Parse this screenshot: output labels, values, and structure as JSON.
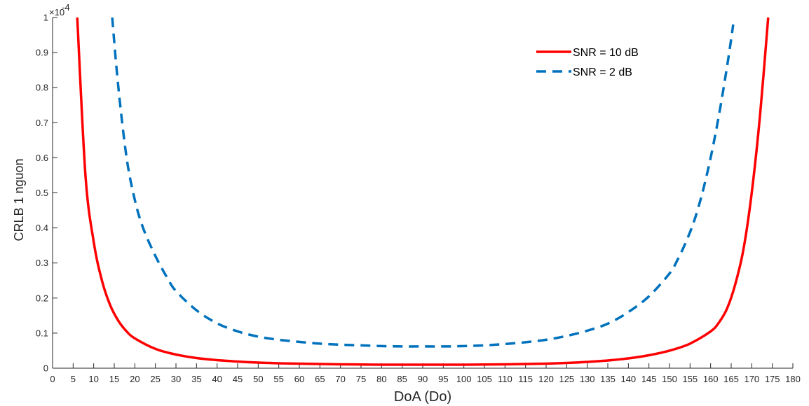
{
  "chart_data": {
    "type": "line",
    "xlabel": "DoA (Do)",
    "ylabel": "CRLB 1 nguon",
    "y_exponent_label": "×10",
    "y_exponent_power": "-4",
    "xlim": [
      0,
      180
    ],
    "ylim": [
      0,
      1
    ],
    "x_ticks": [
      0,
      5,
      10,
      15,
      20,
      25,
      30,
      35,
      40,
      45,
      50,
      55,
      60,
      65,
      70,
      75,
      80,
      85,
      90,
      95,
      100,
      105,
      110,
      115,
      120,
      125,
      130,
      135,
      140,
      145,
      150,
      155,
      160,
      165,
      170,
      175,
      180
    ],
    "y_ticks": [
      0,
      0.1,
      0.2,
      0.3,
      0.4,
      0.5,
      0.6,
      0.7,
      0.8,
      0.9,
      1
    ],
    "legend_position": "top-right",
    "grid": false,
    "series": [
      {
        "name": "SNR = 10 dB",
        "color": "#ff0000",
        "style": "solid",
        "x": [
          6,
          8,
          10,
          12,
          14,
          16,
          18,
          20,
          25,
          30,
          35,
          40,
          45,
          50,
          55,
          60,
          65,
          70,
          75,
          80,
          85,
          90,
          95,
          100,
          105,
          110,
          115,
          120,
          125,
          130,
          135,
          140,
          145,
          150,
          155,
          160,
          162,
          164,
          166,
          168,
          170,
          172,
          174
        ],
        "y": [
          1.0,
          0.55,
          0.36,
          0.25,
          0.18,
          0.135,
          0.105,
          0.085,
          0.055,
          0.039,
          0.029,
          0.023,
          0.019,
          0.016,
          0.014,
          0.013,
          0.012,
          0.011,
          0.0105,
          0.01,
          0.01,
          0.01,
          0.01,
          0.01,
          0.0105,
          0.011,
          0.012,
          0.013,
          0.015,
          0.018,
          0.022,
          0.028,
          0.037,
          0.05,
          0.07,
          0.105,
          0.13,
          0.17,
          0.24,
          0.34,
          0.5,
          0.72,
          1.0
        ]
      },
      {
        "name": "SNR = 2 dB",
        "color": "#0072bd",
        "style": "dashed",
        "x": [
          14.5,
          16,
          18,
          20,
          22,
          25,
          28,
          30,
          35,
          40,
          45,
          50,
          55,
          60,
          65,
          70,
          75,
          80,
          85,
          90,
          95,
          100,
          105,
          110,
          115,
          120,
          125,
          130,
          135,
          140,
          145,
          150,
          152,
          154,
          156,
          158,
          160,
          162,
          164,
          165.5
        ],
        "y": [
          1.0,
          0.8,
          0.6,
          0.48,
          0.4,
          0.32,
          0.255,
          0.22,
          0.165,
          0.128,
          0.105,
          0.09,
          0.081,
          0.075,
          0.07,
          0.067,
          0.065,
          0.063,
          0.062,
          0.062,
          0.062,
          0.063,
          0.065,
          0.069,
          0.074,
          0.081,
          0.092,
          0.107,
          0.127,
          0.16,
          0.205,
          0.27,
          0.31,
          0.36,
          0.42,
          0.5,
          0.6,
          0.72,
          0.86,
          0.98
        ]
      }
    ]
  }
}
